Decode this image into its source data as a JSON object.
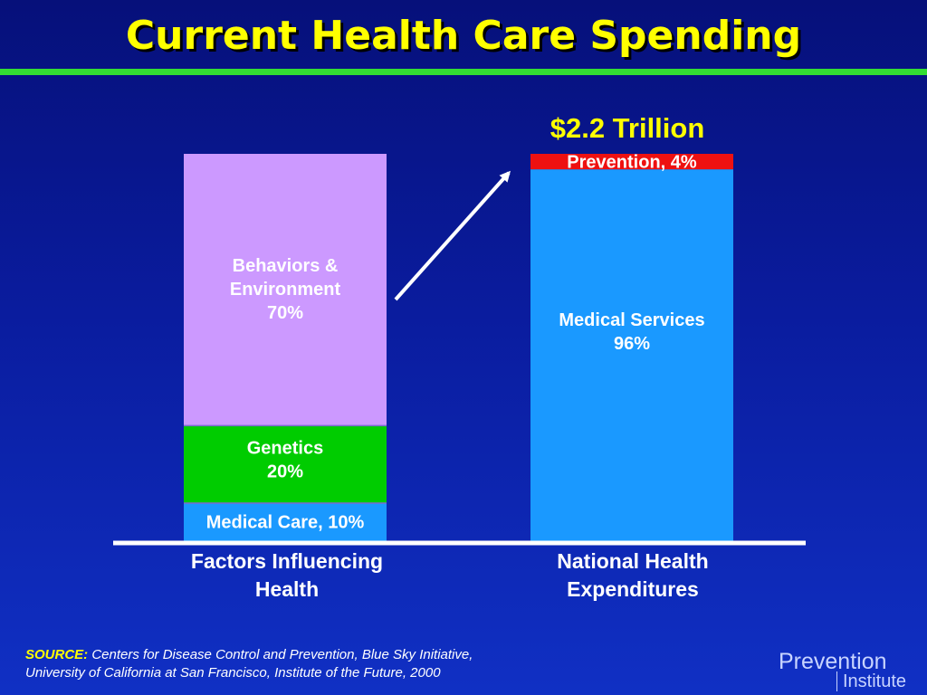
{
  "slide": {
    "title": "Current Health Care Spending",
    "source_head": "SOURCE:",
    "source_line1": "Centers for Disease Control and Prevention, Blue Sky Initiative,",
    "source_line2": "University of California at San Francisco, Institute of the Future, 2000",
    "logo_line1": "Prevention",
    "logo_line2": "Institute"
  },
  "colors": {
    "title": "#ffff00",
    "rule": "#33dd33",
    "behaviors": "#cc99ff",
    "genetics": "#00cc00",
    "medical_care": "#1a99ff",
    "medical_services": "#1a99ff",
    "prevention": "#ee1111"
  },
  "chart_data": {
    "type": "stacked-bar",
    "unit": "%",
    "categories": [
      [
        "Factors Influencing",
        "Health"
      ],
      [
        "National Health",
        "Expenditures"
      ]
    ],
    "stacks": [
      {
        "category_index": 0,
        "total_label": "",
        "segments": [
          {
            "label_lines": [
              "Medical Care, 10%"
            ],
            "value": 10,
            "color": "#1a99ff"
          },
          {
            "label_lines": [
              "Genetics",
              "20%"
            ],
            "value": 20,
            "color": "#00cc00"
          },
          {
            "label_lines": [
              "Behaviors &",
              "Environment",
              "70%"
            ],
            "value": 70,
            "color": "#cc99ff"
          }
        ]
      },
      {
        "category_index": 1,
        "total_label": "$2.2 Trillion",
        "segments": [
          {
            "label_lines": [
              "Medical Services",
              "96%"
            ],
            "value": 96,
            "color": "#1a99ff"
          },
          {
            "label_lines": [
              "Prevention, 4%"
            ],
            "value": 4,
            "color": "#ee1111"
          }
        ]
      }
    ],
    "ylim": [
      0,
      100
    ],
    "annotation": "arrow from Behaviors & Environment to Prevention"
  }
}
